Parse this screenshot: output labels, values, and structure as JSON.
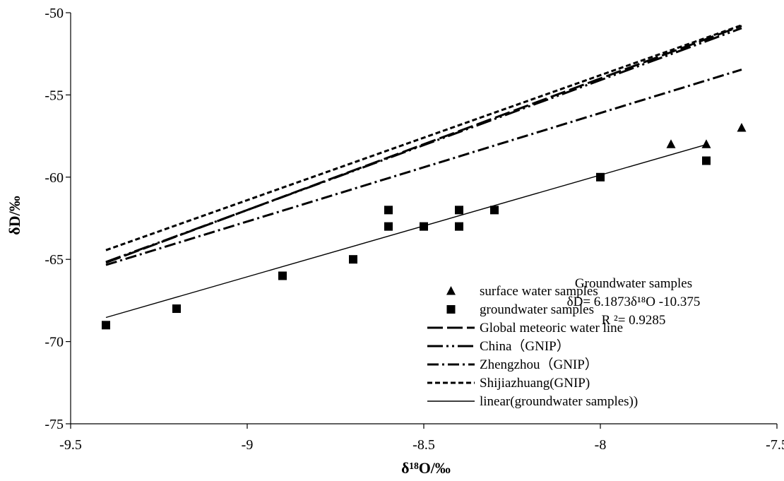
{
  "chart_data": {
    "type": "scatter",
    "title": "",
    "xlabel": "δ¹⁸O/‰",
    "ylabel": "δD/‰",
    "xlim": [
      -9.5,
      -7.5
    ],
    "ylim": [
      -75,
      -50
    ],
    "x_ticks": [
      -9.5,
      -9,
      -8.5,
      -8,
      -7.5
    ],
    "y_ticks": [
      -75,
      -70,
      -65,
      -60,
      -55,
      -50
    ],
    "x_tick_labels": [
      "-9.5",
      "-9",
      "-8.5",
      "-8",
      "-7.5"
    ],
    "y_tick_labels": [
      "-75",
      "-70",
      "-65",
      "-60",
      "-55",
      "-50"
    ],
    "grid": false,
    "legend_position": "bottom-right",
    "series": [
      {
        "name": "surface water samples",
        "kind": "points",
        "marker": "triangle",
        "points": [
          [
            -7.8,
            -58
          ],
          [
            -7.7,
            -58
          ],
          [
            -7.6,
            -57
          ]
        ]
      },
      {
        "name": "groundwater samples",
        "kind": "points",
        "marker": "square",
        "points": [
          [
            -9.4,
            -69
          ],
          [
            -9.2,
            -68
          ],
          [
            -8.9,
            -66
          ],
          [
            -8.7,
            -65
          ],
          [
            -8.6,
            -62
          ],
          [
            -8.6,
            -63
          ],
          [
            -8.5,
            -63
          ],
          [
            -8.4,
            -62
          ],
          [
            -8.4,
            -63
          ],
          [
            -8.3,
            -62
          ],
          [
            -8.0,
            -60
          ],
          [
            -7.7,
            -59
          ]
        ]
      },
      {
        "name": "Global meteoric water line",
        "kind": "line",
        "dash": "long-dash",
        "x_range": [
          -9.4,
          -7.6
        ],
        "slope": 8,
        "intercept": 10
      },
      {
        "name": "China（GNIP）",
        "kind": "line",
        "dash": "long-dash-dot-dot",
        "x_range": [
          -9.4,
          -7.6
        ],
        "slope": 7.9,
        "intercept": 9.1
      },
      {
        "name": "Zhengzhou（GNIP）",
        "kind": "line",
        "dash": "long-dash-dot",
        "x_range": [
          -9.4,
          -7.6
        ],
        "slope": 6.6,
        "intercept": -3.3
      },
      {
        "name": "Shijiazhuang(GNIP)",
        "kind": "line",
        "dash": "short-dash",
        "x_range": [
          -9.4,
          -7.6
        ],
        "slope": 7.6,
        "intercept": 7
      },
      {
        "name": "linear(groundwater samples))",
        "kind": "line",
        "dash": "solid-thin",
        "x_range": [
          -9.4,
          -7.7
        ],
        "slope": 6.1873,
        "intercept": -10.375
      }
    ],
    "annotation": {
      "lines": [
        "Groundwater samples",
        "δD= 6.1873δ¹⁸O -10.375",
        "R ²= 0.9285"
      ]
    }
  }
}
